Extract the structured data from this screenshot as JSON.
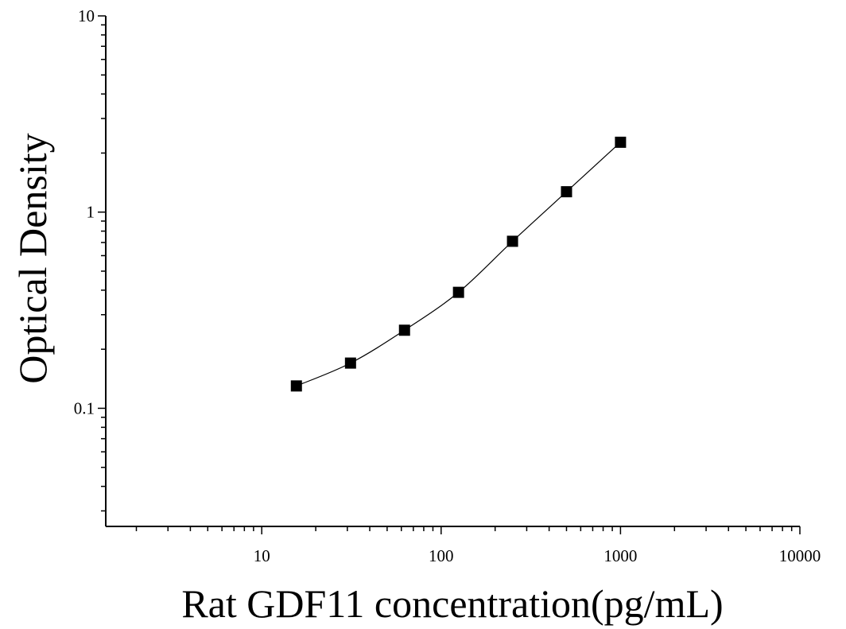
{
  "chart_data": {
    "type": "scatter",
    "title": "",
    "xlabel": "Rat GDF11 concentration(pg/mL)",
    "ylabel": "Optical Density",
    "x_scale": "log",
    "y_scale": "log",
    "xlim": [
      1.35,
      10000
    ],
    "ylim": [
      0.025,
      10
    ],
    "x_ticks": [
      {
        "value": 10,
        "label": "10"
      },
      {
        "value": 100,
        "label": "100"
      },
      {
        "value": 1000,
        "label": "1000"
      },
      {
        "value": 10000,
        "label": "10000"
      }
    ],
    "y_ticks": [
      {
        "value": 0.1,
        "label": "0.1"
      },
      {
        "value": 1,
        "label": "1"
      },
      {
        "value": 10,
        "label": "10"
      }
    ],
    "grid": false,
    "legend": "none",
    "marker": "square",
    "marker_color": "#000000",
    "line_color": "#000000",
    "series": [
      {
        "points": [
          {
            "x": 15.6,
            "y": 0.13
          },
          {
            "x": 31.25,
            "y": 0.17
          },
          {
            "x": 62.5,
            "y": 0.25
          },
          {
            "x": 125,
            "y": 0.39
          },
          {
            "x": 250,
            "y": 0.71
          },
          {
            "x": 500,
            "y": 1.27
          },
          {
            "x": 1000,
            "y": 2.27
          }
        ]
      }
    ]
  }
}
